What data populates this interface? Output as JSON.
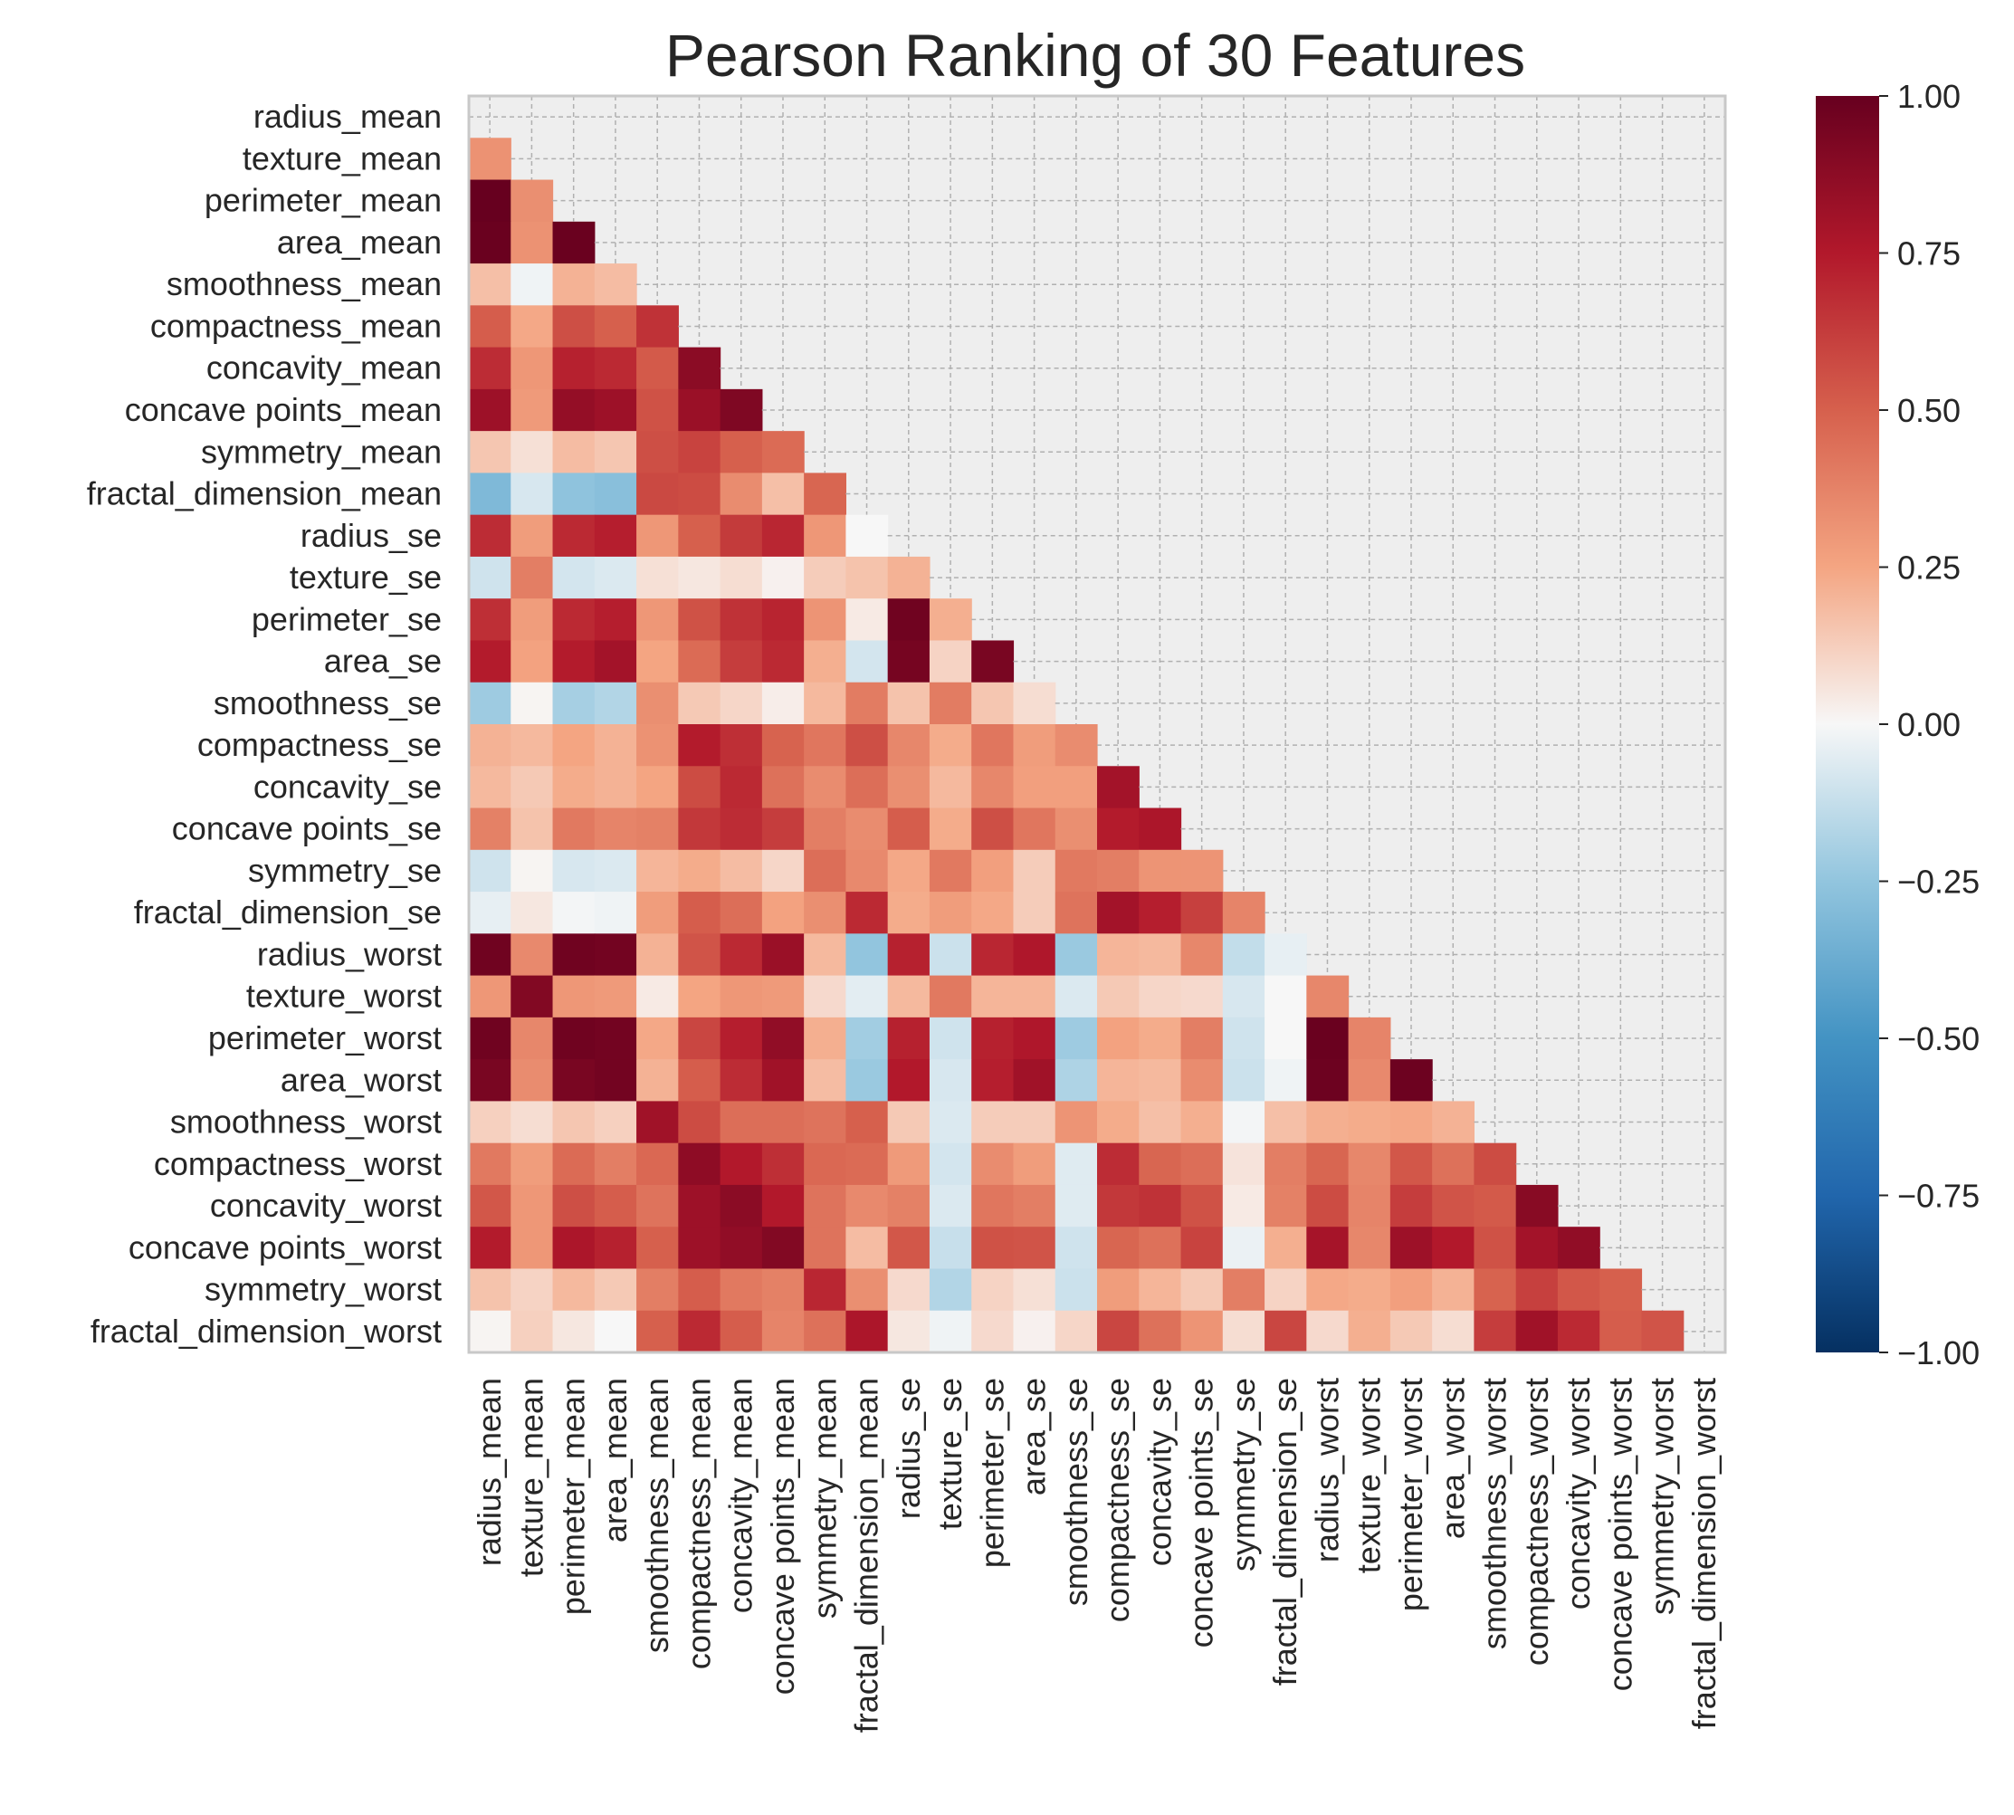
{
  "chart_data": {
    "type": "heatmap",
    "title": "Pearson Ranking of 30 Features",
    "features": [
      "radius_mean",
      "texture_mean",
      "perimeter_mean",
      "area_mean",
      "smoothness_mean",
      "compactness_mean",
      "concavity_mean",
      "concave points_mean",
      "symmetry_mean",
      "fractal_dimension_mean",
      "radius_se",
      "texture_se",
      "perimeter_se",
      "area_se",
      "smoothness_se",
      "compactness_se",
      "concavity_se",
      "concave points_se",
      "symmetry_se",
      "fractal_dimension_se",
      "radius_worst",
      "texture_worst",
      "perimeter_worst",
      "area_worst",
      "smoothness_worst",
      "compactness_worst",
      "concavity_worst",
      "concave points_worst",
      "symmetry_worst",
      "fractal_dimension_worst"
    ],
    "lower_triangle": [
      [],
      [
        0.32
      ],
      [
        1.0,
        0.33
      ],
      [
        0.99,
        0.32,
        0.99
      ],
      [
        0.17,
        -0.02,
        0.21,
        0.18
      ],
      [
        0.51,
        0.24,
        0.56,
        0.5,
        0.66
      ],
      [
        0.68,
        0.3,
        0.72,
        0.69,
        0.52,
        0.88
      ],
      [
        0.82,
        0.29,
        0.85,
        0.82,
        0.55,
        0.83,
        0.92
      ],
      [
        0.15,
        0.07,
        0.18,
        0.15,
        0.56,
        0.6,
        0.5,
        0.46
      ],
      [
        -0.31,
        -0.08,
        -0.26,
        -0.28,
        0.58,
        0.57,
        0.34,
        0.17,
        0.48
      ],
      [
        0.68,
        0.28,
        0.69,
        0.73,
        0.3,
        0.5,
        0.63,
        0.7,
        0.3,
        0.0
      ],
      [
        -0.1,
        0.39,
        -0.09,
        -0.07,
        0.07,
        0.05,
        0.08,
        0.02,
        0.13,
        0.16,
        0.21
      ],
      [
        0.67,
        0.28,
        0.69,
        0.73,
        0.3,
        0.55,
        0.66,
        0.71,
        0.31,
        0.04,
        0.97,
        0.22
      ],
      [
        0.74,
        0.26,
        0.74,
        0.8,
        0.25,
        0.46,
        0.62,
        0.69,
        0.22,
        -0.09,
        0.95,
        0.11,
        0.94
      ],
      [
        -0.22,
        0.01,
        -0.2,
        -0.17,
        0.33,
        0.14,
        0.1,
        0.03,
        0.19,
        0.4,
        0.16,
        0.4,
        0.15,
        0.08
      ],
      [
        0.21,
        0.19,
        0.25,
        0.21,
        0.32,
        0.74,
        0.67,
        0.49,
        0.42,
        0.56,
        0.36,
        0.23,
        0.42,
        0.28,
        0.34
      ],
      [
        0.19,
        0.14,
        0.23,
        0.21,
        0.25,
        0.57,
        0.69,
        0.44,
        0.34,
        0.45,
        0.33,
        0.19,
        0.36,
        0.27,
        0.27,
        0.8
      ],
      [
        0.38,
        0.16,
        0.41,
        0.37,
        0.38,
        0.64,
        0.68,
        0.62,
        0.39,
        0.34,
        0.51,
        0.23,
        0.56,
        0.42,
        0.33,
        0.74,
        0.77
      ],
      [
        -0.1,
        0.01,
        -0.08,
        -0.07,
        0.2,
        0.23,
        0.18,
        0.1,
        0.45,
        0.35,
        0.24,
        0.41,
        0.27,
        0.13,
        0.41,
        0.39,
        0.31,
        0.31
      ],
      [
        -0.04,
        0.05,
        -0.01,
        -0.02,
        0.28,
        0.51,
        0.45,
        0.26,
        0.33,
        0.69,
        0.23,
        0.28,
        0.24,
        0.13,
        0.43,
        0.8,
        0.73,
        0.61,
        0.37
      ],
      [
        0.97,
        0.35,
        0.97,
        0.96,
        0.21,
        0.54,
        0.69,
        0.83,
        0.19,
        -0.25,
        0.72,
        -0.11,
        0.7,
        0.76,
        -0.23,
        0.2,
        0.19,
        0.36,
        -0.13,
        -0.04
      ],
      [
        0.3,
        0.91,
        0.3,
        0.29,
        0.04,
        0.25,
        0.3,
        0.29,
        0.09,
        -0.05,
        0.19,
        0.41,
        0.2,
        0.2,
        -0.07,
        0.14,
        0.1,
        0.09,
        -0.08,
        -0.0,
        0.36
      ],
      [
        0.97,
        0.36,
        0.97,
        0.96,
        0.24,
        0.59,
        0.73,
        0.86,
        0.22,
        -0.21,
        0.72,
        -0.1,
        0.72,
        0.76,
        -0.22,
        0.26,
        0.23,
        0.39,
        -0.1,
        -0.0,
        0.99,
        0.37
      ],
      [
        0.94,
        0.34,
        0.94,
        0.96,
        0.21,
        0.51,
        0.68,
        0.81,
        0.18,
        -0.23,
        0.75,
        -0.08,
        0.73,
        0.81,
        -0.18,
        0.2,
        0.19,
        0.34,
        -0.11,
        -0.02,
        0.98,
        0.35,
        0.98
      ],
      [
        0.12,
        0.08,
        0.15,
        0.12,
        0.81,
        0.57,
        0.45,
        0.45,
        0.43,
        0.5,
        0.14,
        -0.07,
        0.13,
        0.13,
        0.31,
        0.23,
        0.17,
        0.22,
        -0.01,
        0.17,
        0.22,
        0.23,
        0.24,
        0.21
      ],
      [
        0.41,
        0.28,
        0.46,
        0.39,
        0.47,
        0.87,
        0.75,
        0.67,
        0.47,
        0.46,
        0.29,
        -0.09,
        0.34,
        0.28,
        -0.06,
        0.68,
        0.48,
        0.45,
        0.06,
        0.39,
        0.48,
        0.36,
        0.53,
        0.44,
        0.57
      ],
      [
        0.53,
        0.3,
        0.56,
        0.51,
        0.43,
        0.82,
        0.88,
        0.75,
        0.43,
        0.35,
        0.38,
        -0.07,
        0.42,
        0.39,
        -0.06,
        0.64,
        0.66,
        0.55,
        0.04,
        0.38,
        0.57,
        0.37,
        0.62,
        0.54,
        0.52,
        0.89
      ],
      [
        0.74,
        0.3,
        0.77,
        0.72,
        0.5,
        0.82,
        0.86,
        0.91,
        0.43,
        0.18,
        0.53,
        -0.12,
        0.55,
        0.54,
        -0.1,
        0.48,
        0.44,
        0.6,
        -0.03,
        0.22,
        0.79,
        0.36,
        0.82,
        0.75,
        0.55,
        0.8,
        0.86
      ],
      [
        0.16,
        0.11,
        0.19,
        0.14,
        0.39,
        0.51,
        0.41,
        0.38,
        0.7,
        0.33,
        0.09,
        -0.17,
        0.11,
        0.07,
        -0.11,
        0.28,
        0.2,
        0.14,
        0.39,
        0.11,
        0.24,
        0.23,
        0.27,
        0.21,
        0.49,
        0.61,
        0.53,
        0.5
      ],
      [
        0.01,
        0.12,
        0.05,
        0.0,
        0.5,
        0.69,
        0.51,
        0.37,
        0.44,
        0.77,
        0.05,
        -0.02,
        0.09,
        0.02,
        0.1,
        0.59,
        0.44,
        0.31,
        0.08,
        0.59,
        0.09,
        0.22,
        0.14,
        0.08,
        0.62,
        0.81,
        0.69,
        0.51,
        0.54
      ]
    ],
    "colorbar": {
      "min": -1.0,
      "max": 1.0,
      "ticks": [
        "1.00",
        "0.75",
        "0.50",
        "0.25",
        "0.00",
        "−0.25",
        "−0.50",
        "−0.75",
        "−1.00"
      ]
    },
    "colormap": "RdBu_r",
    "masked_cell_color": "#eeeeee",
    "grid": true
  }
}
